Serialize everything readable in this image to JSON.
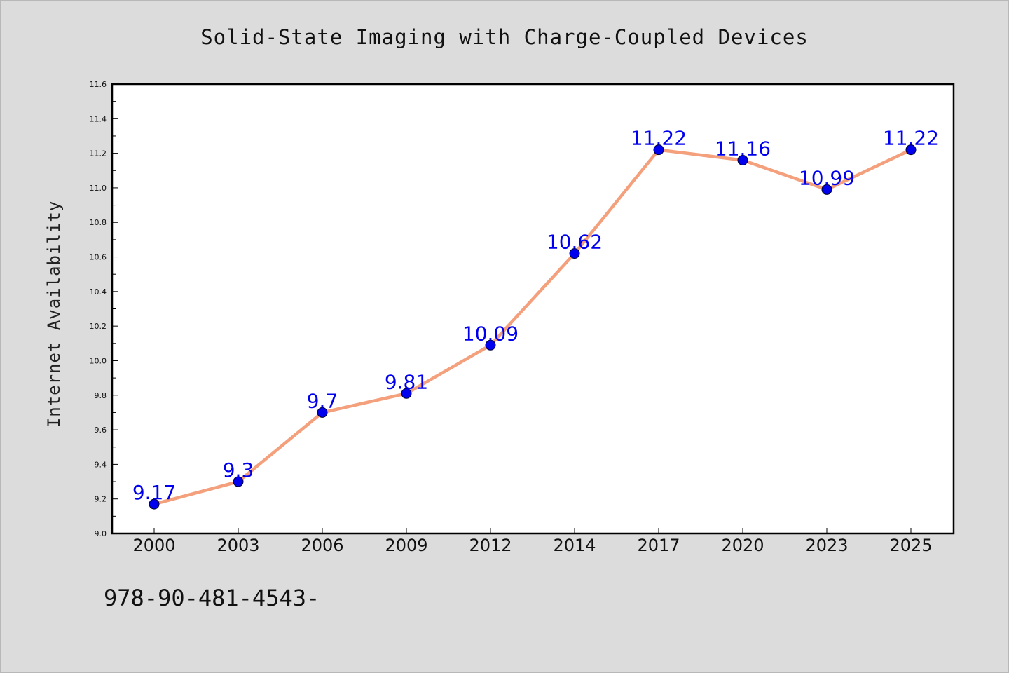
{
  "chart_data": {
    "type": "line",
    "title": "Solid-State Imaging with Charge-Coupled Devices",
    "ylabel": "Internet Availability",
    "xlabel": "",
    "categories": [
      "2000",
      "2003",
      "2006",
      "2009",
      "2012",
      "2014",
      "2017",
      "2020",
      "2023",
      "2025"
    ],
    "series": [
      {
        "values": [
          9.17,
          9.3,
          9.7,
          9.81,
          10.09,
          10.62,
          11.22,
          11.16,
          10.99,
          11.22
        ],
        "data_labels": [
          "9.17",
          "9.3",
          "9.7",
          "9.81",
          "10.09",
          "10.62",
          "11.22",
          "11.16",
          "10.99",
          "11.22"
        ],
        "line_color": "#f4a07c",
        "marker_color": "#0000ee",
        "label_color": "#0000ee"
      }
    ],
    "ylim": [
      9.0,
      11.6
    ],
    "yticks": [
      "9.0",
      "9.2",
      "9.4",
      "9.6",
      "9.8",
      "10.0",
      "10.2",
      "10.4",
      "10.6",
      "10.8",
      "11.0",
      "11.2",
      "11.4",
      "11.6"
    ],
    "grid": false,
    "legend": "none"
  },
  "footer": {
    "text": "978-90-481-4543-"
  },
  "colors": {
    "background": "#dcdcdc",
    "plot_background": "#ffffff",
    "axes": "#000000"
  }
}
